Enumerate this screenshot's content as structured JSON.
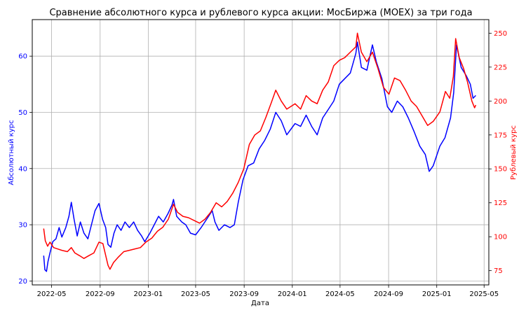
{
  "chart_data": {
    "type": "line",
    "title": "Сравнение абсолютного курса и рублевого курса акции: МосБиржа (MOEX) за три года",
    "xlabel": "Дата",
    "ylabel_left": "Абсолютный курс",
    "ylabel_right": "Рублевый курс",
    "grid": true,
    "x_range": [
      "2022-03-13",
      "2025-05-13"
    ],
    "y_left_range": [
      19.3,
      66.5
    ],
    "y_right_range": [
      64.5,
      260
    ],
    "x_ticks": [
      "2022-05",
      "2022-09",
      "2023-01",
      "2023-05",
      "2023-09",
      "2024-01",
      "2024-05",
      "2024-09",
      "2025-01",
      "2025-05"
    ],
    "y_left_ticks": [
      20,
      30,
      40,
      50,
      60
    ],
    "y_right_ticks": [
      75,
      100,
      125,
      150,
      175,
      200,
      225,
      250
    ],
    "colors": {
      "left": "#0000ff",
      "right": "#ff0000"
    },
    "series": [
      {
        "axis": "left",
        "color": "#0000ff",
        "points": [
          [
            "2022-04-11",
            24.5
          ],
          [
            "2022-04-14",
            22.0
          ],
          [
            "2022-04-18",
            21.7
          ],
          [
            "2022-04-22",
            23.5
          ],
          [
            "2022-04-27",
            25.0
          ],
          [
            "2022-05-04",
            27.0
          ],
          [
            "2022-05-12",
            27.5
          ],
          [
            "2022-05-20",
            29.5
          ],
          [
            "2022-05-27",
            27.8
          ],
          [
            "2022-06-06",
            29.5
          ],
          [
            "2022-06-14",
            31.5
          ],
          [
            "2022-06-20",
            34.0
          ],
          [
            "2022-06-27",
            31.0
          ],
          [
            "2022-07-05",
            28.0
          ],
          [
            "2022-07-13",
            30.5
          ],
          [
            "2022-07-22",
            28.5
          ],
          [
            "2022-08-01",
            27.5
          ],
          [
            "2022-08-10",
            30.0
          ],
          [
            "2022-08-19",
            32.5
          ],
          [
            "2022-08-29",
            33.8
          ],
          [
            "2022-09-07",
            31.0
          ],
          [
            "2022-09-15",
            29.5
          ],
          [
            "2022-09-21",
            26.5
          ],
          [
            "2022-09-28",
            26.0
          ],
          [
            "2022-10-06",
            28.5
          ],
          [
            "2022-10-14",
            30.0
          ],
          [
            "2022-10-24",
            29.0
          ],
          [
            "2022-11-03",
            30.5
          ],
          [
            "2022-11-14",
            29.5
          ],
          [
            "2022-11-25",
            30.5
          ],
          [
            "2022-12-05",
            29.0
          ],
          [
            "2022-12-15",
            28.0
          ],
          [
            "2022-12-23",
            27.0
          ],
          [
            "2023-01-05",
            28.5
          ],
          [
            "2023-01-16",
            30.0
          ],
          [
            "2023-01-27",
            31.5
          ],
          [
            "2023-02-08",
            30.5
          ],
          [
            "2023-02-20",
            32.0
          ],
          [
            "2023-03-02",
            33.5
          ],
          [
            "2023-03-06",
            34.5
          ],
          [
            "2023-03-14",
            31.5
          ],
          [
            "2023-03-27",
            30.5
          ],
          [
            "2023-04-06",
            30.0
          ],
          [
            "2023-04-18",
            28.5
          ],
          [
            "2023-05-01",
            28.2
          ],
          [
            "2023-05-15",
            29.5
          ],
          [
            "2023-05-29",
            31.0
          ],
          [
            "2023-06-12",
            32.5
          ],
          [
            "2023-06-19",
            30.5
          ],
          [
            "2023-06-29",
            29.0
          ],
          [
            "2023-07-13",
            30.0
          ],
          [
            "2023-07-27",
            29.5
          ],
          [
            "2023-08-07",
            30.0
          ],
          [
            "2023-08-17",
            34.0
          ],
          [
            "2023-08-29",
            38.0
          ],
          [
            "2023-09-11",
            40.5
          ],
          [
            "2023-09-25",
            41.0
          ],
          [
            "2023-10-09",
            43.5
          ],
          [
            "2023-10-23",
            45.0
          ],
          [
            "2023-11-06",
            47.0
          ],
          [
            "2023-11-20",
            50.0
          ],
          [
            "2023-12-04",
            48.5
          ],
          [
            "2023-12-18",
            46.0
          ],
          [
            "2024-01-08",
            48.0
          ],
          [
            "2024-01-22",
            47.5
          ],
          [
            "2024-02-05",
            49.5
          ],
          [
            "2024-02-19",
            47.5
          ],
          [
            "2024-03-04",
            46.0
          ],
          [
            "2024-03-18",
            49.0
          ],
          [
            "2024-04-01",
            50.5
          ],
          [
            "2024-04-15",
            52.0
          ],
          [
            "2024-04-29",
            55.0
          ],
          [
            "2024-05-13",
            56.0
          ],
          [
            "2024-05-27",
            57.0
          ],
          [
            "2024-06-10",
            60.5
          ],
          [
            "2024-06-14",
            62.5
          ],
          [
            "2024-06-24",
            58.0
          ],
          [
            "2024-07-08",
            57.5
          ],
          [
            "2024-07-22",
            62.0
          ],
          [
            "2024-08-01",
            59.0
          ],
          [
            "2024-08-15",
            56.0
          ],
          [
            "2024-08-29",
            51.0
          ],
          [
            "2024-09-09",
            50.0
          ],
          [
            "2024-09-23",
            52.0
          ],
          [
            "2024-10-07",
            51.0
          ],
          [
            "2024-10-21",
            49.0
          ],
          [
            "2024-11-05",
            46.5
          ],
          [
            "2024-11-19",
            44.0
          ],
          [
            "2024-12-03",
            42.5
          ],
          [
            "2024-12-13",
            39.5
          ],
          [
            "2024-12-23",
            40.5
          ],
          [
            "2025-01-09",
            44.0
          ],
          [
            "2025-01-22",
            45.5
          ],
          [
            "2025-02-05",
            49.0
          ],
          [
            "2025-02-13",
            53.5
          ],
          [
            "2025-02-20",
            62.0
          ],
          [
            "2025-03-04",
            58.0
          ],
          [
            "2025-03-17",
            56.5
          ],
          [
            "2025-03-27",
            55.0
          ],
          [
            "2025-04-03",
            52.5
          ],
          [
            "2025-04-10",
            53.0
          ]
        ]
      },
      {
        "axis": "right",
        "color": "#ff0000",
        "points": [
          [
            "2022-04-11",
            106
          ],
          [
            "2022-04-15",
            97
          ],
          [
            "2022-04-21",
            93
          ],
          [
            "2022-04-27",
            96
          ],
          [
            "2022-05-06",
            92
          ],
          [
            "2022-05-16",
            91
          ],
          [
            "2022-05-27",
            90
          ],
          [
            "2022-06-10",
            89
          ],
          [
            "2022-06-20",
            92
          ],
          [
            "2022-06-29",
            88
          ],
          [
            "2022-07-11",
            86
          ],
          [
            "2022-07-22",
            84
          ],
          [
            "2022-08-03",
            86
          ],
          [
            "2022-08-16",
            88
          ],
          [
            "2022-08-29",
            96
          ],
          [
            "2022-09-08",
            95
          ],
          [
            "2022-09-21",
            79
          ],
          [
            "2022-09-26",
            76
          ],
          [
            "2022-10-05",
            81
          ],
          [
            "2022-10-17",
            85
          ],
          [
            "2022-10-31",
            89
          ],
          [
            "2022-11-14",
            90
          ],
          [
            "2022-11-28",
            91
          ],
          [
            "2022-12-12",
            92
          ],
          [
            "2022-12-26",
            96
          ],
          [
            "2023-01-10",
            99
          ],
          [
            "2023-01-24",
            104
          ],
          [
            "2023-02-07",
            107
          ],
          [
            "2023-02-21",
            113
          ],
          [
            "2023-03-06",
            124
          ],
          [
            "2023-03-16",
            118
          ],
          [
            "2023-03-30",
            115
          ],
          [
            "2023-04-13",
            114
          ],
          [
            "2023-04-27",
            112
          ],
          [
            "2023-05-11",
            110
          ],
          [
            "2023-05-25",
            113
          ],
          [
            "2023-06-08",
            118
          ],
          [
            "2023-06-22",
            125
          ],
          [
            "2023-07-06",
            122
          ],
          [
            "2023-07-20",
            126
          ],
          [
            "2023-08-03",
            132
          ],
          [
            "2023-08-17",
            140
          ],
          [
            "2023-08-31",
            150
          ],
          [
            "2023-09-14",
            168
          ],
          [
            "2023-09-28",
            175
          ],
          [
            "2023-10-12",
            178
          ],
          [
            "2023-10-26",
            188
          ],
          [
            "2023-11-09",
            199
          ],
          [
            "2023-11-20",
            208
          ],
          [
            "2023-12-04",
            200
          ],
          [
            "2023-12-18",
            194
          ],
          [
            "2024-01-08",
            198
          ],
          [
            "2024-01-22",
            194
          ],
          [
            "2024-02-05",
            204
          ],
          [
            "2024-02-19",
            200
          ],
          [
            "2024-03-04",
            198
          ],
          [
            "2024-03-18",
            208
          ],
          [
            "2024-04-01",
            214
          ],
          [
            "2024-04-15",
            226
          ],
          [
            "2024-04-29",
            230
          ],
          [
            "2024-05-13",
            232
          ],
          [
            "2024-05-27",
            236
          ],
          [
            "2024-06-10",
            240
          ],
          [
            "2024-06-14",
            250
          ],
          [
            "2024-06-24",
            236
          ],
          [
            "2024-07-08",
            229
          ],
          [
            "2024-07-22",
            236
          ],
          [
            "2024-08-05",
            224
          ],
          [
            "2024-08-19",
            210
          ],
          [
            "2024-09-02",
            205
          ],
          [
            "2024-09-16",
            217
          ],
          [
            "2024-09-30",
            215
          ],
          [
            "2024-10-14",
            208
          ],
          [
            "2024-10-28",
            200
          ],
          [
            "2024-11-11",
            196
          ],
          [
            "2024-11-25",
            189
          ],
          [
            "2024-12-09",
            182
          ],
          [
            "2024-12-23",
            185
          ],
          [
            "2025-01-09",
            192
          ],
          [
            "2025-01-23",
            207
          ],
          [
            "2025-02-03",
            202
          ],
          [
            "2025-02-12",
            218
          ],
          [
            "2025-02-18",
            246
          ],
          [
            "2025-02-27",
            232
          ],
          [
            "2025-03-10",
            224
          ],
          [
            "2025-03-20",
            214
          ],
          [
            "2025-03-31",
            200
          ],
          [
            "2025-04-07",
            195
          ],
          [
            "2025-04-10",
            197
          ]
        ]
      }
    ]
  }
}
